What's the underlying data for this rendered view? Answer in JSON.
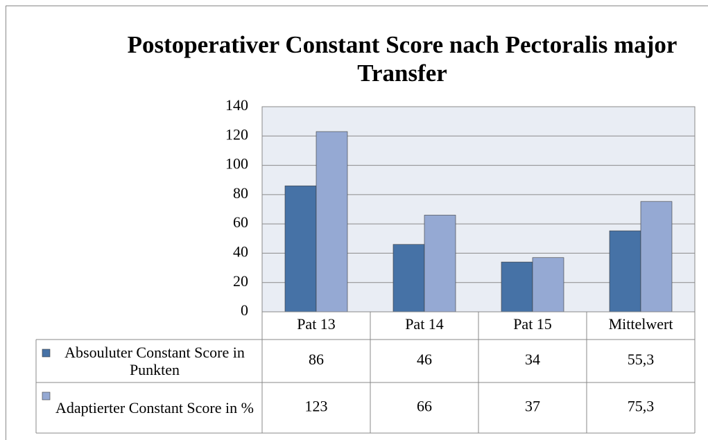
{
  "chart_data": {
    "type": "bar",
    "title": "Postoperativer Constant Score nach Pectoralis major Transfer",
    "categories": [
      "Pat 13",
      "Pat 14",
      "Pat 15",
      "Mittelwert"
    ],
    "series": [
      {
        "name": "Absouluter Constant Score in Punkten",
        "color": "#4672a6",
        "values": [
          86,
          46,
          34,
          55.3
        ],
        "value_labels": [
          "86",
          "46",
          "34",
          "55,3"
        ]
      },
      {
        "name": "Adaptierter Constant Score in %",
        "color": "#95a9d3",
        "values": [
          123,
          66,
          37,
          75.3
        ],
        "value_labels": [
          "123",
          "66",
          "37",
          "75,3"
        ]
      }
    ],
    "ylim": [
      0,
      140
    ],
    "yticks": [
      0,
      20,
      40,
      60,
      80,
      100,
      120,
      140
    ],
    "grid": true
  }
}
